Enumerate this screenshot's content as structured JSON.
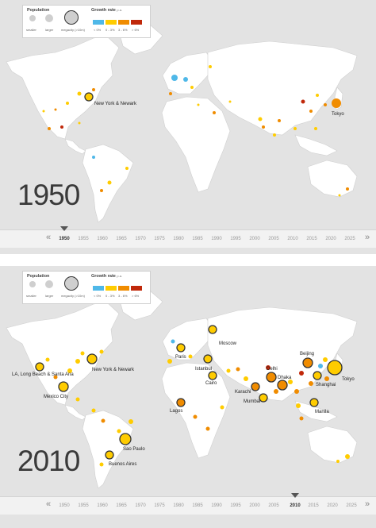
{
  "legend": {
    "population_title": "Population",
    "size_labels": [
      "smaller",
      "larger",
      "megacity (>10m)"
    ],
    "growth_title": "Growth rate",
    "growth_unit": "p.a.",
    "growth_labels": [
      "< 0%",
      "0 - 3%",
      "3 - 6%",
      "> 6%"
    ],
    "colors": [
      "#4fb8e8",
      "#ffcc00",
      "#f08c00",
      "#c0280a"
    ]
  },
  "timeline": {
    "prev_arrow": "«",
    "next_arrow": "»",
    "years": [
      "1950",
      "1955",
      "1960",
      "1965",
      "1970",
      "1975",
      "1980",
      "1985",
      "1990",
      "1995",
      "2000",
      "2005",
      "2010",
      "2015",
      "2020",
      "2025"
    ]
  },
  "panels": [
    {
      "year_label": "1950",
      "selected_year": "1950",
      "cities": [
        {
          "name": "New York & Newark"
        },
        {
          "name": "Tokyo"
        }
      ]
    },
    {
      "year_label": "2010",
      "selected_year": "2010",
      "cities": [
        {
          "name": "LA, Long Beach & Santa Ana"
        },
        {
          "name": "New York & Newark"
        },
        {
          "name": "Mexico City"
        },
        {
          "name": "Sao Paulo"
        },
        {
          "name": "Buenos Aires"
        },
        {
          "name": "Lagos"
        },
        {
          "name": "Paris"
        },
        {
          "name": "Moscow"
        },
        {
          "name": "Istanbul"
        },
        {
          "name": "Cairo"
        },
        {
          "name": "Karachi"
        },
        {
          "name": "Mumbai"
        },
        {
          "name": "Delhi"
        },
        {
          "name": "Dhaka"
        },
        {
          "name": "Beijing"
        },
        {
          "name": "Shanghai"
        },
        {
          "name": "Tokyo"
        },
        {
          "name": "Manila"
        }
      ]
    }
  ]
}
